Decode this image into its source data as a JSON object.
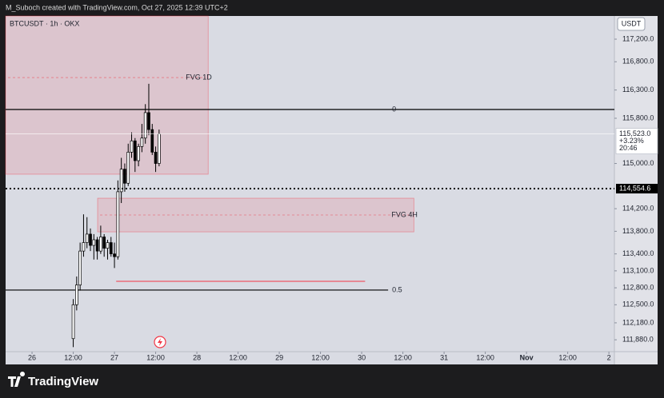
{
  "header": {
    "caption": "M_Suboch created with TradingView.com, Oct 27, 2025 12:39 UTC+2"
  },
  "chart_data": {
    "type": "candlestick",
    "symbol": "BTCUSDT · 1h · OKX",
    "currency": "USDT",
    "xlim": [
      -7.7,
      169.6
    ],
    "xticks": [
      {
        "value": 0,
        "label": "26"
      },
      {
        "value": 12,
        "label": "12:00"
      },
      {
        "value": 24,
        "label": "27"
      },
      {
        "value": 36,
        "label": "12:00"
      },
      {
        "value": 48,
        "label": "28"
      },
      {
        "value": 60,
        "label": "12:00"
      },
      {
        "value": 72,
        "label": "29"
      },
      {
        "value": 84,
        "label": "12:00"
      },
      {
        "value": 96,
        "label": "30"
      },
      {
        "value": 108,
        "label": "12:00"
      },
      {
        "value": 120,
        "label": "31"
      },
      {
        "value": 132,
        "label": "12:00"
      },
      {
        "value": 144,
        "label": "Nov"
      },
      {
        "value": 156,
        "label": "12:00"
      },
      {
        "value": 168,
        "label": "2"
      }
    ],
    "ylim": [
      111670,
      117610
    ],
    "yticks": [
      {
        "value": 117200,
        "label": "117,200.0"
      },
      {
        "value": 116800,
        "label": "116,800.0"
      },
      {
        "value": 116300,
        "label": "116,300.0"
      },
      {
        "value": 115800,
        "label": "115,800.0"
      },
      {
        "value": 115000,
        "label": "115,000.0"
      },
      {
        "value": 114200,
        "label": "114,200.0"
      },
      {
        "value": 113800,
        "label": "113,800.0"
      },
      {
        "value": 113400,
        "label": "113,400.0"
      },
      {
        "value": 113100,
        "label": "113,100.0"
      },
      {
        "value": 112800,
        "label": "112,800.0"
      },
      {
        "value": 112500,
        "label": "112,500.0"
      },
      {
        "value": 112180,
        "label": "112,180.0"
      },
      {
        "value": 111880,
        "label": "111,880.0"
      }
    ],
    "x": [
      12,
      13,
      14,
      15,
      16,
      17,
      18,
      19,
      20,
      21,
      22,
      23,
      24,
      25,
      26,
      27,
      28,
      29,
      30,
      31,
      32,
      33,
      34,
      35,
      36,
      37
    ],
    "open": [
      111900,
      112500,
      112850,
      113450,
      113600,
      113750,
      113550,
      113650,
      113450,
      113700,
      113500,
      113600,
      113400,
      113350,
      114500,
      114900,
      114650,
      115200,
      115400,
      115050,
      115300,
      115450,
      115900,
      115600,
      115200,
      115000
    ],
    "high": [
      112600,
      113000,
      113600,
      114100,
      114050,
      113850,
      113750,
      113700,
      113900,
      113750,
      113650,
      113700,
      113600,
      114700,
      115100,
      115000,
      115350,
      115550,
      115450,
      115350,
      115700,
      116050,
      116410,
      115700,
      115300,
      115600
    ],
    "low": [
      111750,
      112400,
      112750,
      113350,
      113500,
      113450,
      113300,
      113300,
      113400,
      113350,
      113300,
      113350,
      113150,
      113300,
      114300,
      114500,
      114600,
      115100,
      114850,
      114950,
      115200,
      115350,
      115500,
      115150,
      114850,
      114950
    ],
    "close": [
      112500,
      112850,
      113450,
      113600,
      113750,
      113550,
      113650,
      113450,
      113700,
      113500,
      113600,
      113400,
      113350,
      114500,
      114900,
      114650,
      115200,
      115400,
      115050,
      115300,
      115450,
      115900,
      115600,
      115200,
      115000,
      115523
    ],
    "up_color": "#ffffff",
    "down_color": "#000000",
    "last_price": {
      "value": 115523.0,
      "label": "115,523.0"
    },
    "change": "+3.23%",
    "countdown": "20:46",
    "marker_price": {
      "value": 114554.6,
      "label": "114,554.6"
    },
    "zones": [
      {
        "label": "FVG 1D",
        "start": -7.7,
        "end": 51.3,
        "top": 117610,
        "bottom": 114810,
        "mid": 116520
      },
      {
        "label": "FVG 4H",
        "start": 19.1,
        "end": 111.2,
        "top": 114385,
        "bottom": 113790,
        "mid": 114088
      }
    ],
    "levels": [
      {
        "label": "0",
        "price": 115955,
        "start": -7.7,
        "end": 169.6
      },
      {
        "label": "0.5",
        "price": 112760,
        "start": -7.7,
        "end": 103.7
      }
    ],
    "red_line": {
      "price": 112914,
      "start": 24.5,
      "end": 97
    }
  },
  "footer": {
    "brand": "TradingView"
  }
}
